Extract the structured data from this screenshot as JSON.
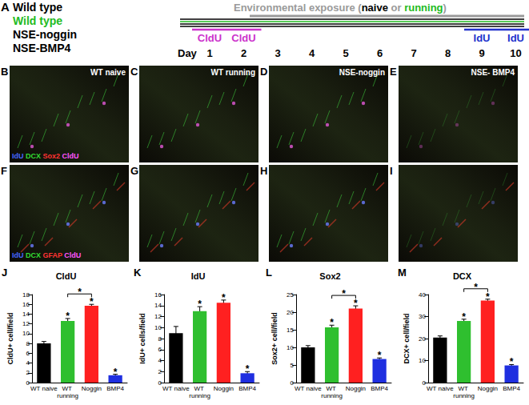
{
  "timeline": {
    "panel_label": "A",
    "groups": [
      {
        "text": "Wild type",
        "color": "#000000"
      },
      {
        "text": "Wild type",
        "color": "#22bb22"
      },
      {
        "text": "NSE-noggin",
        "color": "#000000"
      },
      {
        "text": "NSE-BMP4",
        "color": "#000000"
      }
    ],
    "exposure": [
      {
        "text": "Environmental exposure (",
        "color": "#9a9a9a"
      },
      {
        "text": "naive",
        "color": "#000000"
      },
      {
        "text": " or ",
        "color": "#9a9a9a"
      },
      {
        "text": "running",
        "color": "#22bb22"
      },
      {
        "text": ")",
        "color": "#9a9a9a"
      }
    ],
    "day_label": "Day",
    "days": [
      1,
      2,
      3,
      4,
      5,
      6,
      7,
      8,
      9,
      10
    ],
    "labels": [
      {
        "text": "CldU",
        "days": [
          1,
          2
        ],
        "color": "#cc33cc"
      },
      {
        "text": "IdU",
        "days": [
          9,
          10
        ],
        "color": "#2233cc"
      }
    ]
  },
  "micrographs": [
    {
      "panel_label": "B",
      "caption": "WT naive",
      "stains": [
        {
          "text": "IdU",
          "color": "#4466ff"
        },
        {
          "text": "DCX",
          "color": "#33dd33"
        },
        {
          "text": "Sox2",
          "color": "#ff3333"
        },
        {
          "text": "CldU",
          "color": "#ff55ff"
        }
      ]
    },
    {
      "panel_label": "C",
      "caption": "WT running"
    },
    {
      "panel_label": "D",
      "caption": "NSE-noggin"
    },
    {
      "panel_label": "E",
      "caption": "NSE- BMP4"
    },
    {
      "panel_label": "F",
      "stains": [
        {
          "text": "IdU",
          "color": "#4466ff"
        },
        {
          "text": "DCX",
          "color": "#33dd33"
        },
        {
          "text": "GFAP",
          "color": "#ff3333"
        },
        {
          "text": "CldU",
          "color": "#ff55ff"
        }
      ]
    },
    {
      "panel_label": "G"
    },
    {
      "panel_label": "H"
    },
    {
      "panel_label": "I"
    }
  ],
  "chart_data": [
    {
      "type": "bar",
      "panel_label": "J",
      "title": "CldU",
      "ylabel": "CldU+ cell/field",
      "categories": [
        "WT naive",
        "WT running",
        "Noggin",
        "BMP4"
      ],
      "values": [
        8.0,
        12.6,
        15.7,
        1.5
      ],
      "errors": [
        0.4,
        0.5,
        0.3,
        0.2
      ],
      "colors": [
        "#000000",
        "#2fbf2f",
        "#ff2020",
        "#1f2fe0"
      ],
      "ylim": [
        0,
        18
      ],
      "yticks": [
        0,
        2,
        4,
        6,
        8,
        10,
        12,
        14,
        16,
        18
      ],
      "grid": false,
      "annotations": [
        {
          "category": "WT running",
          "text": "*"
        },
        {
          "category": "Noggin",
          "text": "*"
        },
        {
          "category": "BMP4",
          "text": "*"
        }
      ],
      "brackets": [
        {
          "from": "WT running",
          "to": "Noggin",
          "text": "*"
        }
      ]
    },
    {
      "type": "bar",
      "panel_label": "K",
      "title": "IdU",
      "ylabel": "IdU+ cells/field",
      "categories": [
        "WT naive",
        "WT running",
        "Noggin",
        "BMP4"
      ],
      "values": [
        9.0,
        13.0,
        14.5,
        1.7
      ],
      "errors": [
        1.2,
        0.8,
        0.5,
        0.3
      ],
      "colors": [
        "#000000",
        "#2fbf2f",
        "#ff2020",
        "#1f2fe0"
      ],
      "ylim": [
        0,
        16
      ],
      "yticks": [
        0,
        2,
        4,
        6,
        8,
        10,
        12,
        14,
        16
      ],
      "grid": false,
      "annotations": [
        {
          "category": "WT running",
          "text": "*"
        },
        {
          "category": "Noggin",
          "text": "*"
        },
        {
          "category": "BMP4",
          "text": "*"
        }
      ],
      "brackets": []
    },
    {
      "type": "bar",
      "panel_label": "L",
      "title": "Sox2",
      "ylabel": "Sox2+ cell/field",
      "categories": [
        "WT naive",
        "WT running",
        "Noggin",
        "BMP4"
      ],
      "values": [
        10.0,
        15.7,
        21.0,
        6.7
      ],
      "errors": [
        0.5,
        0.6,
        0.8,
        0.3
      ],
      "colors": [
        "#000000",
        "#2fbf2f",
        "#ff2020",
        "#1f2fe0"
      ],
      "ylim": [
        0,
        25
      ],
      "yticks": [
        0,
        5,
        10,
        15,
        20,
        25
      ],
      "grid": false,
      "annotations": [
        {
          "category": "WT running",
          "text": "*"
        },
        {
          "category": "Noggin",
          "text": "*"
        },
        {
          "category": "BMP4",
          "text": "*"
        }
      ],
      "brackets": [
        {
          "from": "WT running",
          "to": "Noggin",
          "text": "*"
        }
      ]
    },
    {
      "type": "bar",
      "panel_label": "M",
      "title": "DCX",
      "ylabel": "DCX+ cell/field",
      "categories": [
        "WT naive",
        "WT running",
        "Noggin",
        "BMP4"
      ],
      "values": [
        20.5,
        28.0,
        37.3,
        7.8
      ],
      "errors": [
        0.7,
        0.8,
        0.6,
        0.4
      ],
      "colors": [
        "#000000",
        "#2fbf2f",
        "#ff2020",
        "#1f2fe0"
      ],
      "ylim": [
        0,
        40
      ],
      "yticks": [
        0,
        10,
        20,
        30,
        40
      ],
      "grid": false,
      "annotations": [
        {
          "category": "WT running",
          "text": "*"
        },
        {
          "category": "Noggin",
          "text": "*"
        },
        {
          "category": "BMP4",
          "text": "*"
        }
      ],
      "brackets": [
        {
          "from": "WT running",
          "to": "Noggin",
          "text": "*"
        }
      ]
    }
  ]
}
